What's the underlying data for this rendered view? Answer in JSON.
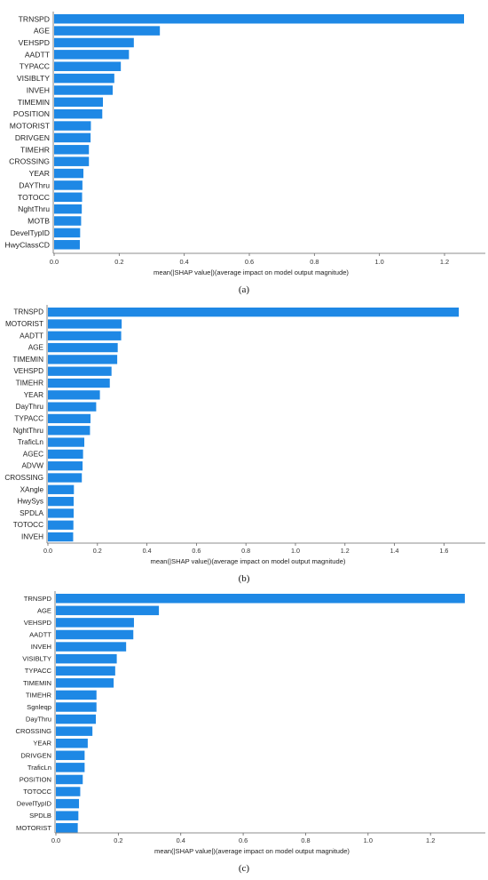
{
  "bar_color": "#1E88E5",
  "axis_color": "#666666",
  "chart_data": [
    {
      "type": "bar",
      "orientation": "horizontal",
      "panel_label": "(a)",
      "xlabel": "mean(|SHAP value|)(average impact on model output magnitude)",
      "xlim": [
        0,
        1.32
      ],
      "xticks": [
        "0.0",
        "0.2",
        "0.4",
        "0.6",
        "0.8",
        "1.0",
        "1.2"
      ],
      "categories": [
        "TRNSPD",
        "AGE",
        "VEHSPD",
        "AADTT",
        "TYPACC",
        "VISIBLTY",
        "INVEH",
        "TIMEMIN",
        "POSITION",
        "MOTORIST",
        "DRIVGEN",
        "TIMEHR",
        "CROSSING",
        "YEAR",
        "DAYThru",
        "TOTOCC",
        "NghtThru",
        "MOTB",
        "DevelTypID",
        "HwyClassCD"
      ],
      "values": [
        1.26,
        0.325,
        0.245,
        0.23,
        0.205,
        0.185,
        0.18,
        0.15,
        0.148,
        0.113,
        0.112,
        0.107,
        0.107,
        0.09,
        0.087,
        0.086,
        0.085,
        0.083,
        0.08,
        0.079
      ]
    },
    {
      "type": "bar",
      "orientation": "horizontal",
      "panel_label": "(b)",
      "xlabel": "mean(|SHAP value|)(average impact on model output magnitude)",
      "xlim": [
        0,
        1.76
      ],
      "xticks": [
        "0.0",
        "0.2",
        "0.4",
        "0.6",
        "0.8",
        "1.0",
        "1.2",
        "1.4",
        "1.6"
      ],
      "categories": [
        "TRNSPD",
        "MOTORIST",
        "AADTT",
        "AGE",
        "TIMEMIN",
        "VEHSPD",
        "TIMEHR",
        "YEAR",
        "DayThru",
        "TYPACC",
        "NghtThru",
        "TraficLn",
        "AGEC",
        "ADVW",
        "CROSSING",
        "XAngle",
        "HwySys",
        "SPDLA",
        "TOTOCC",
        "INVEH"
      ],
      "values": [
        1.66,
        0.298,
        0.296,
        0.282,
        0.28,
        0.257,
        0.25,
        0.21,
        0.195,
        0.172,
        0.17,
        0.147,
        0.142,
        0.14,
        0.137,
        0.105,
        0.104,
        0.104,
        0.103,
        0.102
      ]
    },
    {
      "type": "bar",
      "orientation": "horizontal",
      "panel_label": "(c)",
      "xlabel": "mean(|SHAP value|)(average impact on model output magnitude)",
      "xlim": [
        0,
        1.37
      ],
      "xticks": [
        "0.0",
        "0.2",
        "0.4",
        "0.6",
        "0.8",
        "1.0",
        "1.2"
      ],
      "categories": [
        "TRNSPD",
        "AGE",
        "VEHSPD",
        "AADTT",
        "INVEH",
        "VISIBLTY",
        "TYPACC",
        "TIMEMIN",
        "TIMEHR",
        "Sgnleqp",
        "DayThru",
        "CROSSING",
        "YEAR",
        "DRIVGEN",
        "TraficLn",
        "POSITION",
        "TOTOCC",
        "DevelTypID",
        "SPDLB",
        "MOTORIST"
      ],
      "values": [
        1.31,
        0.33,
        0.25,
        0.248,
        0.225,
        0.195,
        0.19,
        0.185,
        0.13,
        0.13,
        0.128,
        0.117,
        0.102,
        0.092,
        0.092,
        0.086,
        0.078,
        0.074,
        0.072,
        0.07
      ]
    }
  ]
}
